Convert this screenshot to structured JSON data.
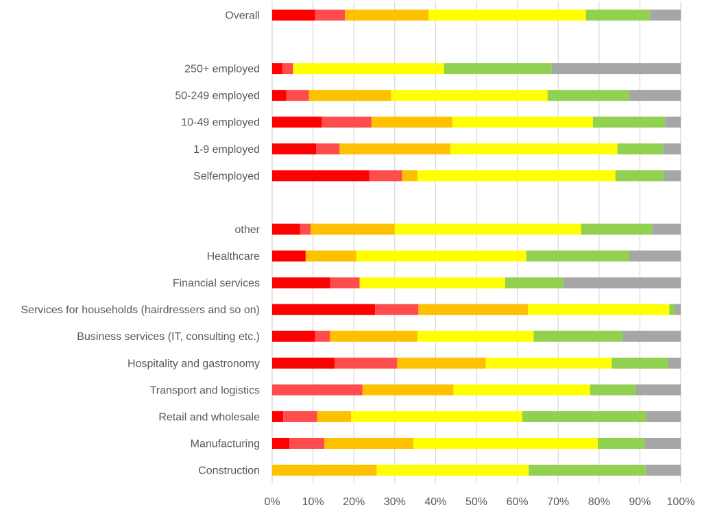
{
  "chart_data": {
    "type": "bar",
    "orientation": "horizontal",
    "stacked": "percent",
    "title": "",
    "xlabel": "",
    "ylabel": "",
    "xlim": [
      0,
      100
    ],
    "x_ticks": [
      "0%",
      "10%",
      "20%",
      "30%",
      "40%",
      "50%",
      "60%",
      "70%",
      "80%",
      "90%",
      "100%"
    ],
    "grid": "vertical",
    "legend": "none",
    "categories": [
      "Overall",
      "",
      "250+ employed",
      "50-249 employed",
      "10-49 employed",
      "1-9 employed",
      "Selfemployed",
      "",
      "other",
      "Healthcare",
      "Financial services",
      "Services for households (hairdressers and so on)",
      "Business services (IT, consulting etc.)",
      "Hospitality and gastronomy",
      "Transport and logistics",
      "Retail and wholesale",
      "Manufacturing",
      "Construction"
    ],
    "series": [
      {
        "color": "#ff0000",
        "values": [
          10.5,
          null,
          2.5,
          3.5,
          12.2,
          10.8,
          23.8,
          null,
          6.8,
          8.2,
          14.2,
          25.2,
          10.5,
          15.3,
          0,
          2.7,
          4.2,
          0
        ]
      },
      {
        "color": "#ff4d4d",
        "values": [
          7.3,
          null,
          2.6,
          5.5,
          12.1,
          5.7,
          8.0,
          null,
          2.6,
          0,
          7.2,
          10.6,
          3.6,
          15.3,
          22.1,
          8.3,
          8.6,
          0
        ]
      },
      {
        "color": "#ffc000",
        "values": [
          20.5,
          null,
          0,
          20.1,
          19.8,
          27.1,
          3.8,
          null,
          20.6,
          12.4,
          0,
          26.8,
          21.5,
          21.7,
          22.3,
          8.3,
          21.8,
          25.6
        ]
      },
      {
        "color": "#ffff00",
        "values": [
          38.5,
          null,
          37.0,
          38.3,
          34.4,
          40.9,
          48.4,
          null,
          45.6,
          41.6,
          35.6,
          34.6,
          28.4,
          30.8,
          33.4,
          41.9,
          45.1,
          37.2
        ]
      },
      {
        "color": "#92d050",
        "values": [
          15.7,
          null,
          26.3,
          19.9,
          17.7,
          11.2,
          11.9,
          null,
          17.4,
          25.2,
          14.2,
          1.3,
          21.7,
          13.8,
          11.2,
          30.4,
          11.5,
          28.6
        ]
      },
      {
        "color": "#a6a6a6",
        "values": [
          7.5,
          null,
          31.6,
          12.7,
          3.8,
          4.3,
          4.1,
          null,
          7.0,
          12.6,
          28.8,
          1.5,
          14.3,
          3.1,
          11.0,
          8.4,
          8.8,
          8.6
        ]
      }
    ]
  }
}
